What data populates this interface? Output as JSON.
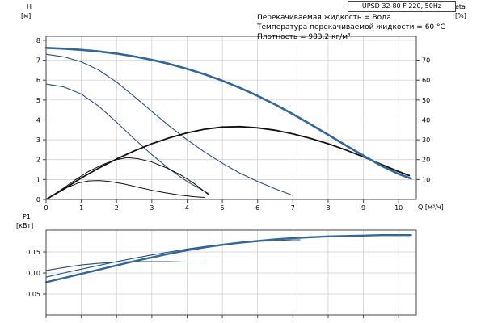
{
  "title_box": {
    "label": "UPSD 32-80 F 220, 50Hz"
  },
  "annotations": [
    "Перекачиваемая жидкость = Вода",
    "Температура перекачиваемой жидкости = 60 °C",
    "Плотность = 983.2 кг/м³"
  ],
  "axis_labels": {
    "head_title": "H",
    "head_unit": "[м]",
    "eta_title": "eta",
    "eta_unit": "[%]",
    "flow_axis": "Q [м³/ч]",
    "power_title": "P1",
    "power_unit": "[кВт]"
  },
  "colors": {
    "pump_blue": "#336699",
    "pump_blue_dark": "#2b4d7e",
    "eta_black": "#111111",
    "grid": "#cccccc",
    "axis": "#444444"
  },
  "chart_data": [
    {
      "type": "line",
      "title": "UPSD 32-80 F 220, 50Hz",
      "xlabel": "Q [м³/ч]",
      "ylabel": "H [м]",
      "y2label": "eta [%]",
      "xlim": [
        0,
        10.5
      ],
      "ylim": [
        0,
        8.2
      ],
      "y2lim": [
        0,
        82
      ],
      "grid": true,
      "legend": "none",
      "x_ticks": [
        0,
        1,
        2,
        3,
        4,
        5,
        6,
        7,
        8,
        9,
        10
      ],
      "x_tick_labels": [
        "0",
        "1",
        "2",
        "3",
        "4",
        "5",
        "6",
        "7",
        "8",
        "9",
        "10"
      ],
      "y_ticks": [
        0,
        1,
        2,
        3,
        4,
        5,
        6,
        7,
        8
      ],
      "y_tick_labels": [
        "0",
        "1",
        "2",
        "3",
        "4",
        "5",
        "6",
        "7",
        "8"
      ],
      "y2_ticks": [
        10,
        20,
        30,
        40,
        50,
        60,
        70
      ],
      "y2_tick_labels": [
        "10",
        "20",
        "30",
        "40",
        "50",
        "60",
        "70"
      ],
      "series": [
        {
          "name": "head-speed-1",
          "axis": "y",
          "color": "#2b4d7e",
          "width": 1.1,
          "points": [
            [
              0,
              5.8
            ],
            [
              0.5,
              5.66
            ],
            [
              1,
              5.3
            ],
            [
              1.5,
              4.68
            ],
            [
              2,
              3.88
            ],
            [
              2.5,
              3.05
            ],
            [
              3,
              2.25
            ],
            [
              3.5,
              1.52
            ],
            [
              4,
              0.9
            ],
            [
              4.6,
              0.3
            ]
          ]
        },
        {
          "name": "head-speed-2",
          "axis": "y",
          "color": "#2b4d7e",
          "width": 1.1,
          "points": [
            [
              0,
              7.3
            ],
            [
              0.5,
              7.17
            ],
            [
              1,
              6.92
            ],
            [
              1.5,
              6.5
            ],
            [
              2,
              5.9
            ],
            [
              2.5,
              5.18
            ],
            [
              3,
              4.42
            ],
            [
              3.5,
              3.68
            ],
            [
              4,
              3.0
            ],
            [
              4.5,
              2.38
            ],
            [
              5,
              1.82
            ],
            [
              5.5,
              1.32
            ],
            [
              6,
              0.9
            ],
            [
              6.5,
              0.53
            ],
            [
              7,
              0.2
            ]
          ]
        },
        {
          "name": "efficiency-speed-1",
          "axis": "y2",
          "color": "#111111",
          "width": 1,
          "points": [
            [
              0,
              0
            ],
            [
              0.3,
              3
            ],
            [
              0.6,
              6
            ],
            [
              0.9,
              8.2
            ],
            [
              1.2,
              9.3
            ],
            [
              1.5,
              9.5
            ],
            [
              1.8,
              9
            ],
            [
              2.2,
              7.8
            ],
            [
              2.6,
              6.2
            ],
            [
              3,
              4.6
            ],
            [
              3.4,
              3.3
            ],
            [
              3.8,
              2.2
            ],
            [
              4.2,
              1.4
            ],
            [
              4.5,
              1
            ]
          ]
        },
        {
          "name": "efficiency-speed-2",
          "axis": "y2",
          "color": "#111111",
          "width": 1,
          "points": [
            [
              0,
              0
            ],
            [
              0.4,
              4.5
            ],
            [
              0.8,
              9.5
            ],
            [
              1.2,
              14
            ],
            [
              1.6,
              17.5
            ],
            [
              2,
              20
            ],
            [
              2.3,
              21
            ],
            [
              2.6,
              20.5
            ],
            [
              3,
              18.8
            ],
            [
              3.4,
              16
            ],
            [
              3.8,
              12.5
            ],
            [
              4.2,
              8
            ],
            [
              4.6,
              2.5
            ]
          ]
        },
        {
          "name": "efficiency-speed-3",
          "axis": "y2",
          "color": "#111111",
          "width": 1.8,
          "points": [
            [
              0,
              0
            ],
            [
              0.5,
              5.2
            ],
            [
              1,
              10.8
            ],
            [
              1.5,
              15.8
            ],
            [
              2,
              20.3
            ],
            [
              2.5,
              24.4
            ],
            [
              3,
              28
            ],
            [
              3.5,
              31
            ],
            [
              4,
              33.5
            ],
            [
              4.5,
              35.3
            ],
            [
              5,
              36.4
            ],
            [
              5.5,
              36.6
            ],
            [
              6,
              36
            ],
            [
              6.5,
              34.8
            ],
            [
              7,
              33
            ],
            [
              7.5,
              30.7
            ],
            [
              8,
              28
            ],
            [
              8.5,
              24.9
            ],
            [
              9,
              21.4
            ],
            [
              9.5,
              17.7
            ],
            [
              10,
              14
            ],
            [
              10.3,
              12
            ]
          ]
        },
        {
          "name": "head-speed-3",
          "axis": "y",
          "color": "#336699",
          "width": 2.6,
          "points": [
            [
              0,
              7.62
            ],
            [
              0.5,
              7.58
            ],
            [
              1,
              7.52
            ],
            [
              1.5,
              7.44
            ],
            [
              2,
              7.33
            ],
            [
              2.5,
              7.19
            ],
            [
              3,
              7.02
            ],
            [
              3.5,
              6.81
            ],
            [
              4,
              6.57
            ],
            [
              4.5,
              6.29
            ],
            [
              5,
              5.97
            ],
            [
              5.5,
              5.61
            ],
            [
              6,
              5.21
            ],
            [
              6.5,
              4.77
            ],
            [
              7,
              4.29
            ],
            [
              7.5,
              3.78
            ],
            [
              8,
              3.25
            ],
            [
              8.5,
              2.72
            ],
            [
              9,
              2.2
            ],
            [
              9.5,
              1.7
            ],
            [
              10,
              1.28
            ],
            [
              10.35,
              1.05
            ]
          ]
        }
      ]
    },
    {
      "type": "line",
      "title": "",
      "xlabel": "Q [м³/ч]",
      "ylabel": "P1 [кВт]",
      "xlim": [
        0,
        10.5
      ],
      "ylim": [
        0,
        0.202
      ],
      "grid": true,
      "legend": "none",
      "x_ticks": [
        0,
        1,
        2,
        3,
        4,
        5,
        6,
        7,
        8,
        9,
        10
      ],
      "x_tick_labels": [],
      "y_ticks": [
        0.05,
        0.1,
        0.15
      ],
      "y_tick_labels": [
        "0.05",
        "0.10",
        "0.15"
      ],
      "series": [
        {
          "name": "power-speed-1",
          "axis": "y",
          "color": "#2b4d7e",
          "width": 1.1,
          "points": [
            [
              0,
              0.106
            ],
            [
              0.5,
              0.113
            ],
            [
              1,
              0.119
            ],
            [
              1.5,
              0.123
            ],
            [
              2,
              0.126
            ],
            [
              2.5,
              0.127
            ],
            [
              3,
              0.127
            ],
            [
              3.5,
              0.127
            ],
            [
              4,
              0.126
            ],
            [
              4.5,
              0.126
            ]
          ]
        },
        {
          "name": "power-speed-2",
          "axis": "y",
          "color": "#2b4d7e",
          "width": 1.1,
          "points": [
            [
              0,
              0.09
            ],
            [
              0.5,
              0.1
            ],
            [
              1,
              0.109
            ],
            [
              1.5,
              0.118
            ],
            [
              2,
              0.127
            ],
            [
              2.5,
              0.135
            ],
            [
              3,
              0.143
            ],
            [
              3.5,
              0.15
            ],
            [
              4,
              0.157
            ],
            [
              4.5,
              0.163
            ],
            [
              5,
              0.168
            ],
            [
              5.5,
              0.172
            ],
            [
              6,
              0.175
            ],
            [
              6.5,
              0.177
            ],
            [
              7,
              0.179
            ],
            [
              7.2,
              0.179
            ]
          ]
        },
        {
          "name": "power-speed-3",
          "axis": "y",
          "color": "#336699",
          "width": 2.4,
          "points": [
            [
              0,
              0.078
            ],
            [
              0.5,
              0.088
            ],
            [
              1,
              0.098
            ],
            [
              1.5,
              0.108
            ],
            [
              2,
              0.118
            ],
            [
              2.5,
              0.128
            ],
            [
              3,
              0.137
            ],
            [
              3.5,
              0.146
            ],
            [
              4,
              0.154
            ],
            [
              4.5,
              0.161
            ],
            [
              5,
              0.167
            ],
            [
              5.5,
              0.172
            ],
            [
              6,
              0.176
            ],
            [
              6.5,
              0.18
            ],
            [
              7,
              0.183
            ],
            [
              7.5,
              0.185
            ],
            [
              8,
              0.187
            ],
            [
              8.5,
              0.188
            ],
            [
              9,
              0.189
            ],
            [
              9.5,
              0.19
            ],
            [
              10,
              0.19
            ],
            [
              10.35,
              0.19
            ]
          ]
        }
      ]
    }
  ]
}
